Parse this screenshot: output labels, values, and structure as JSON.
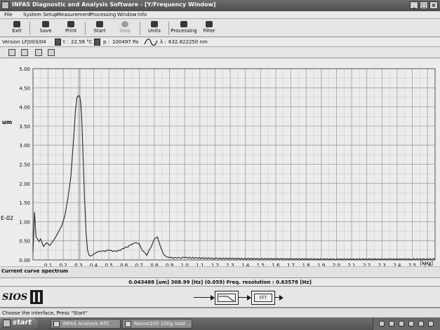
{
  "window": {
    "title": "INFAS Diagnostic and Analysis Software - [Y/Frequency Window]"
  },
  "menu": [
    "File",
    "System Setup",
    "Measurement",
    "Processing",
    "Window",
    "Info"
  ],
  "toolbar": {
    "exit": "Exit",
    "save": "Save",
    "print": "Print",
    "start": "Start",
    "stop": "Stop",
    "units": "Units",
    "processing": "Processing",
    "filter": "Filter"
  },
  "info": {
    "version_label": "Version :",
    "version": "LFJ003/04",
    "temp_label": "t :",
    "temp": "22.56 °C",
    "pressure_label": "p :",
    "pressure": "100497 Pa",
    "wavelength_label": "λ :",
    "wavelength": "632.822250 nm"
  },
  "chart_data": {
    "type": "line",
    "ylabel": "um",
    "exponent_label": "E-02",
    "xunit": "[kHz]",
    "xlim": [
      0,
      2.65
    ],
    "ylim": [
      0,
      5
    ],
    "yticks": [
      "0.00",
      "0.50",
      "1.00",
      "1.50",
      "2.00",
      "2.50",
      "3.00",
      "3.50",
      "4.00",
      "4.50",
      "5.00"
    ],
    "xticks": [
      "0.1",
      "0.2",
      "0.3",
      "0.4",
      "0.5",
      "0.6",
      "0.7",
      "0.8",
      "0.9",
      "1.0",
      "1.1",
      "1.2",
      "1.3",
      "1.4",
      "1.5",
      "1.6",
      "1.7",
      "1.8",
      "1.9",
      "2.0",
      "2.1",
      "2.2",
      "2.3",
      "2.4",
      "2.5",
      "2.6"
    ],
    "grid": true,
    "cursor_x": 0.309,
    "series": [
      {
        "x": [
          0.0,
          0.01,
          0.02,
          0.03,
          0.04,
          0.05,
          0.07,
          0.09,
          0.11,
          0.13,
          0.15,
          0.17,
          0.19,
          0.21,
          0.23,
          0.25,
          0.27,
          0.28,
          0.29,
          0.3,
          0.31,
          0.315,
          0.32,
          0.325,
          0.33,
          0.34,
          0.35,
          0.36,
          0.37,
          0.38,
          0.4,
          0.42,
          0.45,
          0.5,
          0.55,
          0.6,
          0.65,
          0.68,
          0.7,
          0.72,
          0.75,
          0.78,
          0.8,
          0.82,
          0.84,
          0.86,
          0.88,
          0.9,
          0.95,
          1.0,
          1.2,
          1.5,
          2.0,
          2.5,
          2.65
        ],
        "y": [
          0.2,
          1.25,
          0.6,
          0.55,
          0.48,
          0.55,
          0.35,
          0.45,
          0.38,
          0.48,
          0.6,
          0.75,
          0.9,
          1.15,
          1.6,
          2.2,
          3.3,
          3.9,
          4.25,
          4.3,
          4.25,
          4.1,
          3.8,
          3.3,
          2.7,
          1.6,
          0.7,
          0.25,
          0.12,
          0.1,
          0.15,
          0.2,
          0.22,
          0.25,
          0.22,
          0.3,
          0.4,
          0.45,
          0.42,
          0.25,
          0.12,
          0.35,
          0.55,
          0.6,
          0.35,
          0.15,
          0.08,
          0.06,
          0.05,
          0.06,
          0.04,
          0.03,
          0.02,
          0.02,
          0.02
        ]
      }
    ]
  },
  "curve": {
    "label": "Current curve :",
    "name": "spectrum"
  },
  "readout": {
    "text": "0.043488  [um]  308.99  [Hz]  (0.059)   Freq. resolution : 0.63578  [Hz]"
  },
  "logo": {
    "text": "SIOS"
  },
  "flow": {
    "fft_label": "FFT"
  },
  "status": {
    "message": "Choose the interface, Press \"Start\""
  },
  "taskbar": {
    "start": "start",
    "tasks": [
      "INFAS Analysis NTC",
      "Nanox200 100g load ..."
    ]
  }
}
